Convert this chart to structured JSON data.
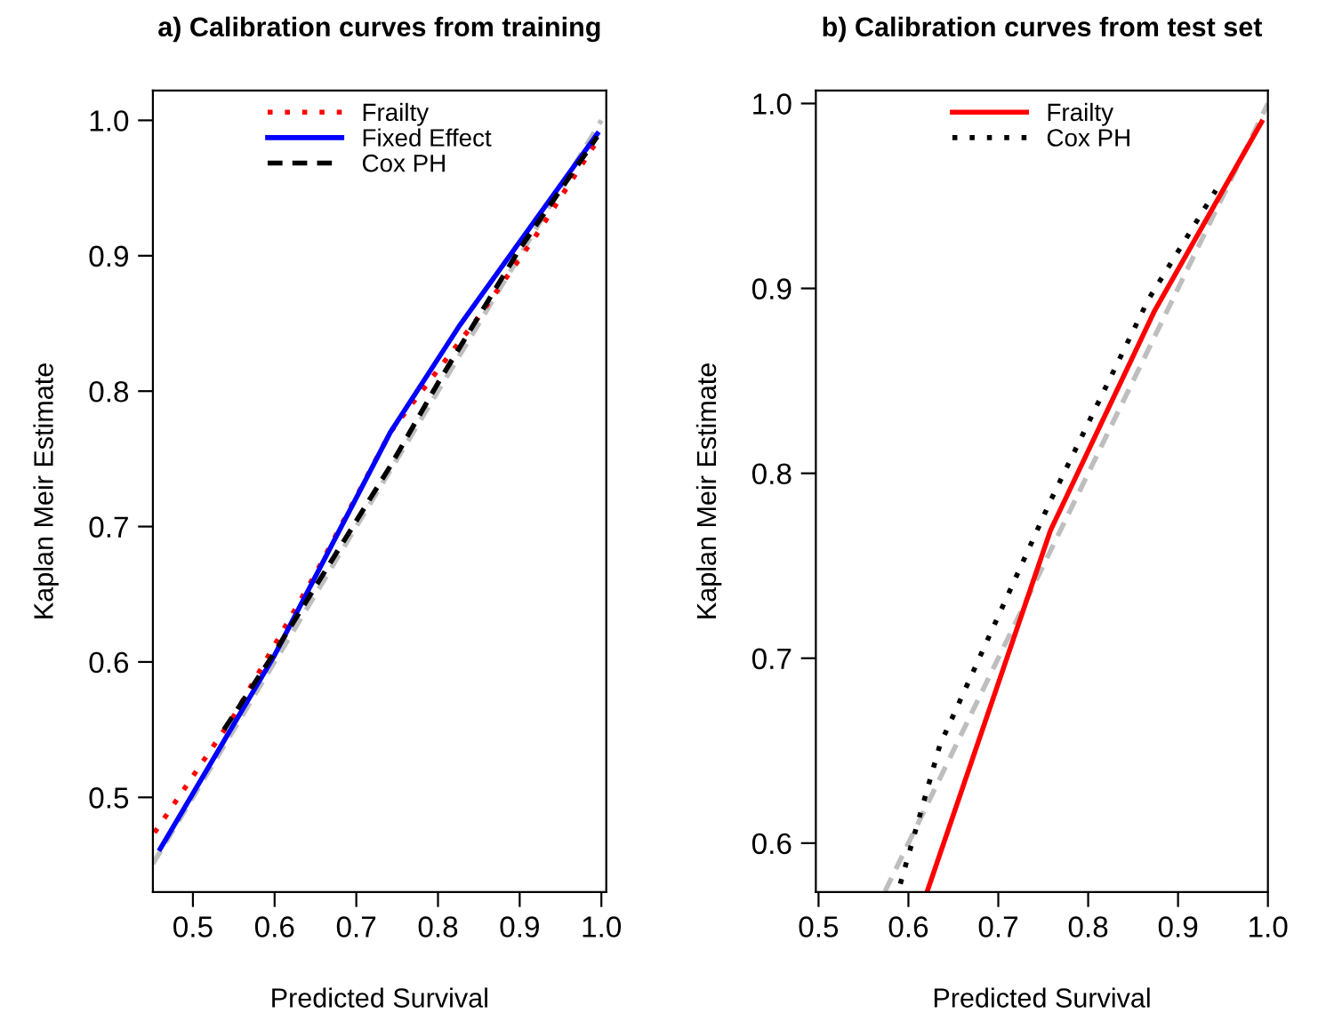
{
  "chart_data": [
    {
      "type": "line",
      "title": "a) Calibration curves from training",
      "xlabel": "Predicted Survival",
      "ylabel": "Kaplan Meir Estimate",
      "xlim": [
        0.451,
        1.006
      ],
      "ylim": [
        0.43,
        1.022
      ],
      "xticks": [
        {
          "value": 0.5,
          "label": "0.5"
        },
        {
          "value": 0.6,
          "label": "0.6"
        },
        {
          "value": 0.7,
          "label": "0.7"
        },
        {
          "value": 0.8,
          "label": "0.8"
        },
        {
          "value": 0.9,
          "label": "0.9"
        },
        {
          "value": 1.0,
          "label": "1.0"
        }
      ],
      "yticks": [
        {
          "value": 0.5,
          "label": "0.5"
        },
        {
          "value": 0.6,
          "label": "0.6"
        },
        {
          "value": 0.7,
          "label": "0.7"
        },
        {
          "value": 0.8,
          "label": "0.8"
        },
        {
          "value": 0.9,
          "label": "0.9"
        },
        {
          "value": 1.0,
          "label": "1.0"
        }
      ],
      "grid": false,
      "legend": "top",
      "series": [
        {
          "color": "#bebebe",
          "line_style": "dashed",
          "x": [
            0.451,
            1.0
          ],
          "values": [
            0.451,
            1.0
          ]
        },
        {
          "name": "Frailty",
          "color": "#ff0000",
          "line_style": "dotted",
          "x": [
            0.453,
            0.55,
            0.65,
            0.742,
            0.85,
            0.92,
            0.995
          ],
          "values": [
            0.474,
            0.56,
            0.665,
            0.77,
            0.855,
            0.915,
            0.985
          ]
        },
        {
          "name": "Fixed Effect",
          "color": "#0000ff",
          "line_style": "solid",
          "x": [
            0.46,
            0.6,
            0.742,
            0.827,
            0.995
          ],
          "values": [
            0.462,
            0.605,
            0.77,
            0.849,
            0.99
          ]
        },
        {
          "name": "Cox PH",
          "color": "#000000",
          "line_style": "dashed",
          "x": [
            0.538,
            0.6,
            0.742,
            0.8,
            0.9,
            0.995
          ],
          "values": [
            0.55,
            0.607,
            0.745,
            0.806,
            0.905,
            0.988
          ]
        }
      ]
    },
    {
      "type": "line",
      "title": "b) Calibration curves from test set",
      "xlabel": "Predicted Survival",
      "ylabel": "Kaplan Meir Estimate",
      "xlim": [
        0.497,
        1.0
      ],
      "ylim": [
        0.5735,
        1.007
      ],
      "xticks": [
        {
          "value": 0.5,
          "label": "0.5"
        },
        {
          "value": 0.6,
          "label": "0.6"
        },
        {
          "value": 0.7,
          "label": "0.7"
        },
        {
          "value": 0.8,
          "label": "0.8"
        },
        {
          "value": 0.9,
          "label": "0.9"
        },
        {
          "value": 1.0,
          "label": "1.0"
        }
      ],
      "yticks": [
        {
          "value": 0.6,
          "label": "0.6"
        },
        {
          "value": 0.7,
          "label": "0.7"
        },
        {
          "value": 0.8,
          "label": "0.8"
        },
        {
          "value": 0.9,
          "label": "0.9"
        },
        {
          "value": 1.0,
          "label": "1.0"
        }
      ],
      "grid": false,
      "legend": "top",
      "series": [
        {
          "color": "#bebebe",
          "line_style": "dashed",
          "x": [
            0.574,
            1.0
          ],
          "values": [
            0.574,
            1.0
          ]
        },
        {
          "name": "Frailty",
          "color": "#ff0000",
          "line_style": "solid",
          "x": [
            0.621,
            0.758,
            0.874,
            0.993
          ],
          "values": [
            0.574,
            0.769,
            0.888,
            0.99
          ]
        },
        {
          "name": "Cox PH",
          "color": "#000000",
          "line_style": "dotted",
          "x": [
            0.591,
            0.635,
            0.758,
            0.867,
            0.942
          ],
          "values": [
            0.578,
            0.653,
            0.785,
            0.894,
            0.953
          ]
        }
      ]
    }
  ]
}
